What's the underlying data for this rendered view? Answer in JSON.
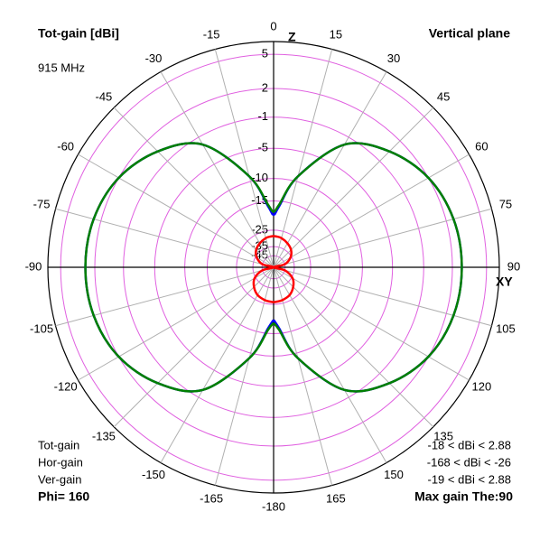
{
  "chart_data": {
    "type": "polar",
    "title": "Tot-gain [dBi]",
    "subtitle": "915 MHz",
    "plane": "Vertical plane",
    "axis_top_label": "Z",
    "axis_right_label": "XY",
    "phi_label": "Phi= 160",
    "max_gain_label": "Max gain The:90",
    "rscale": "arrl",
    "rlim": [
      -45,
      6
    ],
    "rticks": [
      5,
      2,
      -1,
      -5,
      -10,
      -15,
      -25,
      -35,
      -45
    ],
    "thetaticks": [
      0,
      15,
      30,
      45,
      60,
      75,
      90,
      105,
      120,
      135,
      150,
      165,
      -180,
      -165,
      -150,
      -135,
      -120,
      -105,
      -90,
      -75,
      -60,
      -45,
      -30,
      -15
    ],
    "grid": true,
    "theta": [
      -180,
      -175,
      -165,
      -150,
      -135,
      -120,
      -105,
      -90,
      -75,
      -60,
      -45,
      -30,
      -15,
      -5,
      0,
      5,
      15,
      30,
      45,
      60,
      75,
      90,
      105,
      120,
      135,
      150,
      165,
      175,
      180
    ],
    "series": [
      {
        "name": "Tot-gain",
        "color": "#008000",
        "range": "-18 < dBi < 2.88",
        "values": [
          -18,
          -16,
          -9,
          -2,
          0.5,
          2,
          2.7,
          2.88,
          2.7,
          2,
          0.5,
          -2,
          -9,
          -16,
          -18,
          -16,
          -9,
          -2,
          0.5,
          2,
          2.7,
          2.88,
          2.7,
          2,
          0.5,
          -2,
          -9,
          -16,
          -18
        ]
      },
      {
        "name": "Hor-gain",
        "color": "#ff0000",
        "range": "-168 < dBi < -26",
        "values": [
          -26,
          -26.2,
          -26.5,
          -27.5,
          -30,
          -34,
          -45,
          -168,
          -45,
          -36,
          -32,
          -30,
          -28.5,
          -28.1,
          -28,
          -28.1,
          -28.5,
          -30,
          -32,
          -36,
          -45,
          -168,
          -45,
          -34,
          -30,
          -27.5,
          -26.5,
          -26.2,
          -26
        ]
      },
      {
        "name": "Ver-gain",
        "color": "#0000ff",
        "range": "-19 < dBi < 2.88",
        "values": [
          -19,
          -16.5,
          -9,
          -2,
          0.5,
          2,
          2.7,
          2.88,
          2.7,
          2,
          0.5,
          -2,
          -9,
          -16.5,
          -19,
          -16.5,
          -9,
          -2,
          0.5,
          2,
          2.7,
          2.88,
          2.7,
          2,
          0.5,
          -2,
          -9,
          -16.5,
          -19
        ]
      }
    ]
  }
}
